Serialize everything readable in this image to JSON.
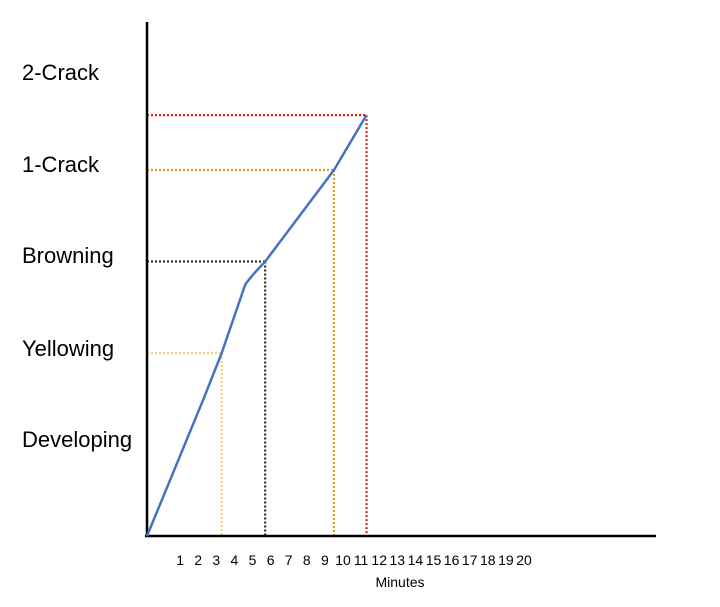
{
  "chart_data": {
    "type": "line",
    "xlabel": "Minutes",
    "ylabel": "",
    "title": "",
    "xlim": [
      0,
      20
    ],
    "x_ticks": [
      "1",
      "2",
      "3",
      "4",
      "5",
      "6",
      "7",
      "8",
      "9",
      "10",
      "11",
      "12",
      "13",
      "14",
      "15",
      "16",
      "17",
      "18",
      "19",
      "20"
    ],
    "stages": [
      "Developing",
      "Yellowing",
      "Browning",
      "1-Crack",
      "2-Crack"
    ],
    "ylim": [
      0,
      5
    ],
    "grid": false,
    "series": [
      {
        "color": "#4472C4",
        "points": [
          {
            "x": 0,
            "y": 0
          },
          {
            "x": 2.3,
            "y": 1.5
          },
          {
            "x": 3.3,
            "y": 2.0
          },
          {
            "x": 4.6,
            "y": 2.75
          },
          {
            "x": 5.0,
            "y": 2.85
          },
          {
            "x": 5.7,
            "y": 3.0
          },
          {
            "x": 9.5,
            "y": 4.0
          },
          {
            "x": 11.3,
            "y": 4.6
          }
        ]
      }
    ],
    "markers": [
      {
        "stage": "Yellowing",
        "x": 3.3,
        "y": 2.0,
        "color": "#F5D27A"
      },
      {
        "stage": "Browning",
        "x": 5.7,
        "y": 3.0,
        "color": "#3B2A10"
      },
      {
        "stage": "1-Crack",
        "x": 9.5,
        "y": 4.0,
        "color": "#E39B1B"
      },
      {
        "stage": "2-Crack",
        "x": 11.3,
        "y": 4.6,
        "color": "#E0201B"
      }
    ]
  }
}
